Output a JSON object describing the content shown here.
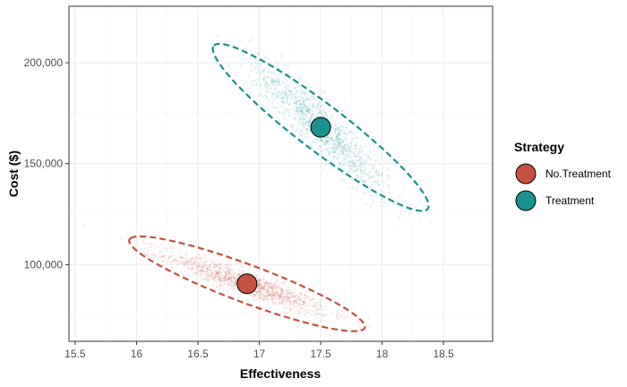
{
  "chart_data": {
    "type": "scatter",
    "title": "",
    "xlabel": "Effectiveness",
    "ylabel": "Cost ($)",
    "xlim": [
      15.45,
      18.9
    ],
    "ylim": [
      62000,
      228000
    ],
    "x_ticks": [
      15.5,
      16,
      16.5,
      17,
      17.5,
      18,
      18.5
    ],
    "x_tick_labels": [
      "15.5",
      "16",
      "16.5",
      "17",
      "17.5",
      "18",
      "18.5"
    ],
    "y_ticks": [
      100000,
      150000,
      200000
    ],
    "y_tick_labels": [
      "100,000",
      "150,000",
      "200,000"
    ],
    "grid": true,
    "legend": {
      "title": "Strategy",
      "position": "right"
    },
    "series": [
      {
        "name": "No.Treatment",
        "color": "#c5513f",
        "mean": {
          "x": 16.9,
          "y": 90500
        },
        "spread": {
          "sd_x": 0.33,
          "sd_y": 7500,
          "correlation": -0.92
        },
        "ellipse": {
          "center": [
            16.9,
            90500
          ],
          "a": [
            -0.95,
            22500
          ],
          "b": [
            -0.14,
            -6800
          ]
        }
      },
      {
        "name": "Treatment",
        "color": "#1a9090",
        "mean": {
          "x": 17.5,
          "y": 168000
        },
        "spread": {
          "sd_x": 0.28,
          "sd_y": 17000,
          "correlation": -0.92
        },
        "ellipse": {
          "center": [
            17.5,
            168000
          ],
          "a": [
            -0.87,
            40500
          ],
          "b": [
            0.125,
            8600
          ]
        }
      }
    ]
  }
}
